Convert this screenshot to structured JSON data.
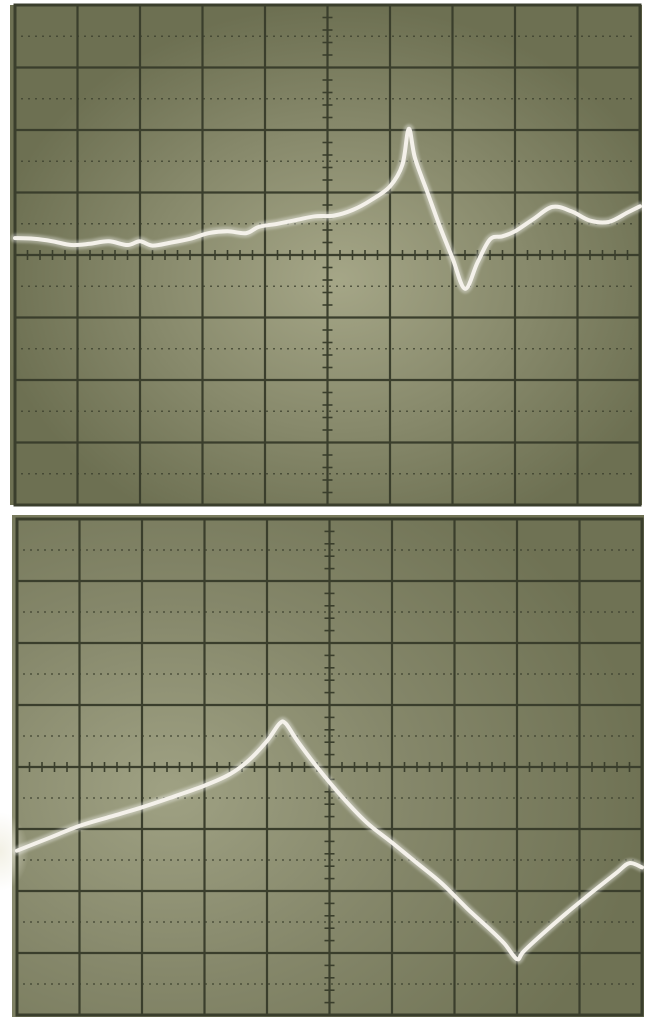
{
  "image": {
    "description_free": true,
    "colors": {
      "screen": "#767a5a",
      "screen_light": "#a3a585",
      "graticule": "#3a3e2c",
      "trace": "#f4f1ea",
      "border": "#ffffff"
    }
  },
  "photos": [
    {
      "id": "top",
      "grid": {
        "columns": 10,
        "rows": 8
      },
      "waveform": [
        [
          0.0,
          0.27
        ],
        [
          0.03,
          0.26
        ],
        [
          0.06,
          0.22
        ],
        [
          0.09,
          0.16
        ],
        [
          0.12,
          0.18
        ],
        [
          0.15,
          0.22
        ],
        [
          0.18,
          0.16
        ],
        [
          0.2,
          0.22
        ],
        [
          0.22,
          0.15
        ],
        [
          0.25,
          0.2
        ],
        [
          0.28,
          0.26
        ],
        [
          0.31,
          0.35
        ],
        [
          0.34,
          0.38
        ],
        [
          0.37,
          0.35
        ],
        [
          0.39,
          0.45
        ],
        [
          0.42,
          0.5
        ],
        [
          0.45,
          0.56
        ],
        [
          0.48,
          0.62
        ],
        [
          0.51,
          0.63
        ],
        [
          0.54,
          0.72
        ],
        [
          0.57,
          0.88
        ],
        [
          0.6,
          1.1
        ],
        [
          0.62,
          1.45
        ],
        [
          0.63,
          2.02
        ],
        [
          0.64,
          1.55
        ],
        [
          0.66,
          1.0
        ],
        [
          0.68,
          0.45
        ],
        [
          0.7,
          -0.05
        ],
        [
          0.72,
          -0.54
        ],
        [
          0.74,
          -0.12
        ],
        [
          0.76,
          0.25
        ],
        [
          0.78,
          0.3
        ],
        [
          0.8,
          0.38
        ],
        [
          0.83,
          0.58
        ],
        [
          0.86,
          0.77
        ],
        [
          0.89,
          0.7
        ],
        [
          0.92,
          0.55
        ],
        [
          0.95,
          0.53
        ],
        [
          0.98,
          0.68
        ],
        [
          1.0,
          0.78
        ]
      ]
    },
    {
      "id": "bottom",
      "grid": {
        "columns": 10,
        "rows": 8
      },
      "waveform": [
        [
          0.0,
          -1.35
        ],
        [
          0.05,
          -1.15
        ],
        [
          0.1,
          -0.95
        ],
        [
          0.15,
          -0.8
        ],
        [
          0.2,
          -0.65
        ],
        [
          0.25,
          -0.48
        ],
        [
          0.3,
          -0.3
        ],
        [
          0.34,
          -0.12
        ],
        [
          0.37,
          0.1
        ],
        [
          0.4,
          0.42
        ],
        [
          0.42,
          0.7
        ],
        [
          0.43,
          0.7
        ],
        [
          0.45,
          0.4
        ],
        [
          0.48,
          0.0
        ],
        [
          0.52,
          -0.48
        ],
        [
          0.56,
          -0.9
        ],
        [
          0.6,
          -1.22
        ],
        [
          0.64,
          -1.55
        ],
        [
          0.68,
          -1.88
        ],
        [
          0.72,
          -2.28
        ],
        [
          0.76,
          -2.65
        ],
        [
          0.78,
          -2.85
        ],
        [
          0.8,
          -3.1
        ],
        [
          0.81,
          -2.98
        ],
        [
          0.84,
          -2.7
        ],
        [
          0.88,
          -2.35
        ],
        [
          0.92,
          -2.02
        ],
        [
          0.96,
          -1.7
        ],
        [
          0.98,
          -1.55
        ],
        [
          1.0,
          -1.62
        ]
      ]
    }
  ]
}
